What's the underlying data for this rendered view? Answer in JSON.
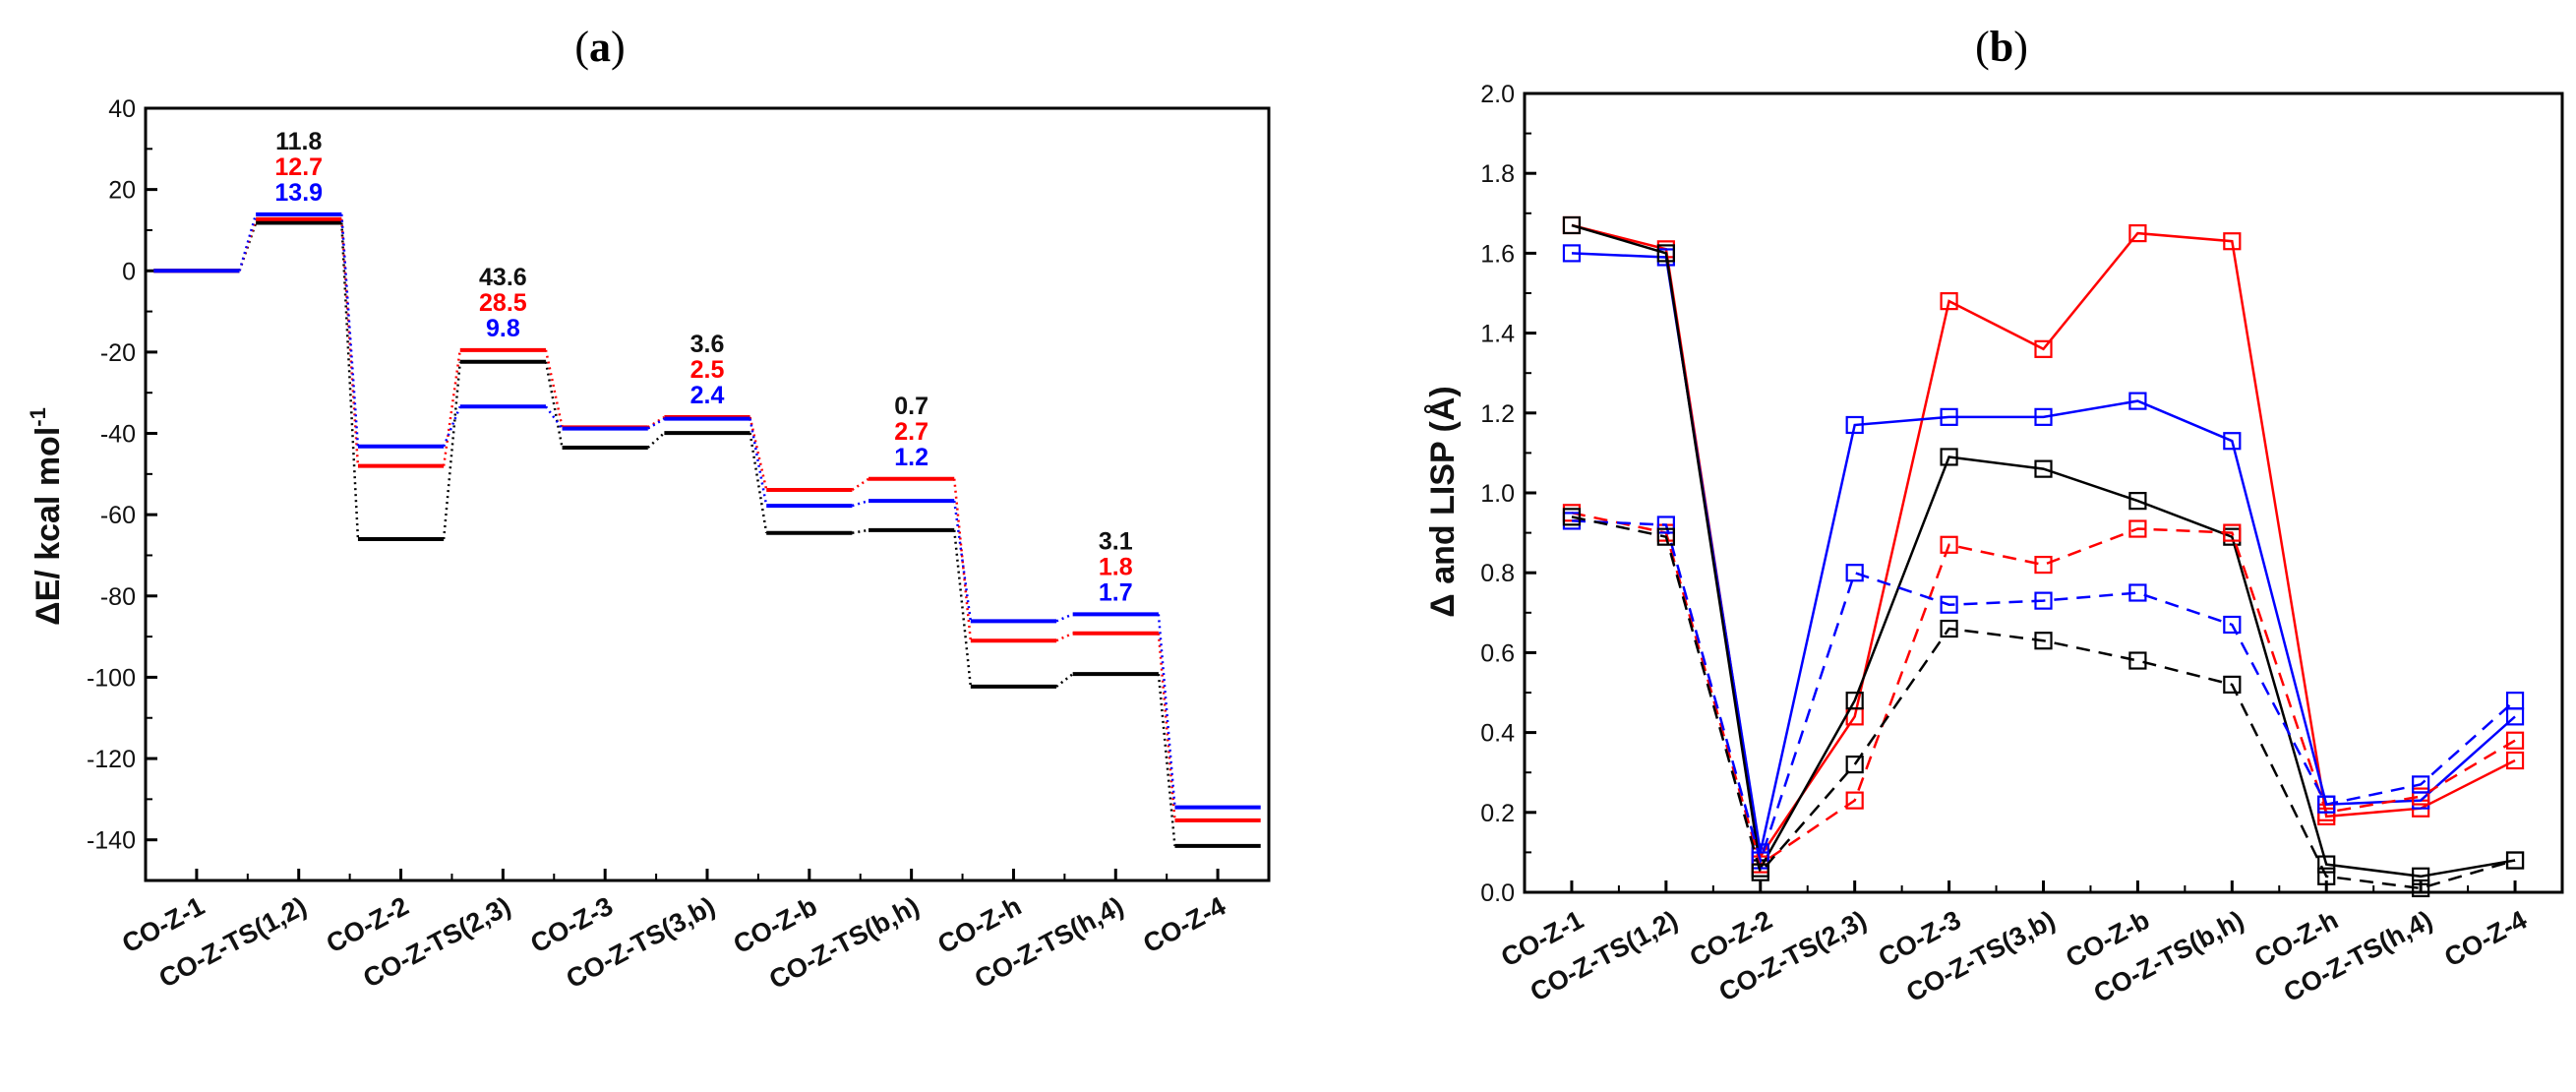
{
  "chart_data": [
    {
      "type": "energy-profile",
      "title_open": "(",
      "title_letter": "a",
      "title_close": ")",
      "ylabel": "ΔE/ kcal mol",
      "ylabel_sup": "-1",
      "ylim": [
        -150,
        40
      ],
      "yticks": [
        40,
        20,
        0,
        -20,
        -40,
        -60,
        -80,
        -100,
        -120,
        -140
      ],
      "ytick_labels": [
        "40",
        "20",
        "0",
        "-20",
        "-40",
        "-60",
        "-80",
        "-100",
        "-120",
        "-140"
      ],
      "categories": [
        "CO-Z-1",
        "CO-Z-TS(1,2)",
        "CO-Z-2",
        "CO-Z-TS(2,3)",
        "CO-Z-3",
        "CO-Z-TS(3,b)",
        "CO-Z-b",
        "CO-Z-TS(b,h)",
        "CO-Z-h",
        "CO-Z-TS(h,4)",
        "CO-Z-4"
      ],
      "series": [
        {
          "name": "black",
          "color": "#000000",
          "values": [
            0,
            11.8,
            -66,
            -22.4,
            -43.5,
            -39.9,
            -64.5,
            -63.8,
            -102.3,
            -99.2,
            -141.5
          ]
        },
        {
          "name": "red",
          "color": "#ff0000",
          "values": [
            0,
            12.7,
            -48,
            -19.5,
            -38.5,
            -36.0,
            -53.9,
            -51.2,
            -91.0,
            -89.2,
            -135.2
          ]
        },
        {
          "name": "blue",
          "color": "#0000ff",
          "values": [
            0,
            13.9,
            -43.2,
            -33.4,
            -38.8,
            -36.4,
            -57.8,
            -56.6,
            -86.2,
            -84.5,
            -132.0
          ]
        }
      ],
      "barriers": [
        {
          "category_index": 1,
          "labels": [
            "11.8",
            "12.7",
            "13.9"
          ]
        },
        {
          "category_index": 3,
          "labels": [
            "43.6",
            "28.5",
            "9.8"
          ]
        },
        {
          "category_index": 5,
          "labels": [
            "3.6",
            "2.5",
            "2.4"
          ]
        },
        {
          "category_index": 7,
          "labels": [
            "0.7",
            "2.7",
            "1.2"
          ]
        },
        {
          "category_index": 9,
          "labels": [
            "3.1",
            "1.8",
            "1.7"
          ]
        }
      ],
      "barrier_colors": [
        "#111111",
        "#ff0000",
        "#0000ff"
      ]
    },
    {
      "type": "line",
      "title_open": "(",
      "title_letter": "b",
      "title_close": ")",
      "ylabel": "Δ and LISP (Å)",
      "ylim": [
        0,
        2.0
      ],
      "yticks": [
        0.0,
        0.2,
        0.4,
        0.6,
        0.8,
        1.0,
        1.2,
        1.4,
        1.6,
        1.8,
        2.0
      ],
      "ytick_labels": [
        "0.0",
        "0.2",
        "0.4",
        "0.6",
        "0.8",
        "1.0",
        "1.2",
        "1.4",
        "1.6",
        "1.8",
        "2.0"
      ],
      "categories": [
        "CO-Z-1",
        "CO-Z-TS(1,2)",
        "CO-Z-2",
        "CO-Z-TS(2,3)",
        "CO-Z-3",
        "CO-Z-TS(3,b)",
        "CO-Z-b",
        "CO-Z-TS(b,h)",
        "CO-Z-h",
        "CO-Z-TS(h,4)",
        "CO-Z-4"
      ],
      "series": [
        {
          "name": "red solid",
          "color": "#ff0000",
          "dash": false,
          "values": [
            1.67,
            1.61,
            0.09,
            0.44,
            1.48,
            1.36,
            1.65,
            1.63,
            0.19,
            0.21,
            0.33
          ]
        },
        {
          "name": "blue solid",
          "color": "#0000ff",
          "dash": false,
          "values": [
            1.6,
            1.59,
            0.1,
            1.17,
            1.19,
            1.19,
            1.23,
            1.13,
            0.22,
            0.23,
            0.44
          ]
        },
        {
          "name": "black solid",
          "color": "#000000",
          "dash": false,
          "values": [
            1.67,
            1.6,
            0.06,
            0.48,
            1.09,
            1.06,
            0.98,
            0.89,
            0.07,
            0.04,
            0.08
          ]
        },
        {
          "name": "red dashed",
          "color": "#ff0000",
          "dash": true,
          "values": [
            0.95,
            0.9,
            0.07,
            0.23,
            0.87,
            0.82,
            0.91,
            0.9,
            0.2,
            0.24,
            0.38
          ]
        },
        {
          "name": "blue dashed",
          "color": "#0000ff",
          "dash": true,
          "values": [
            0.93,
            0.92,
            0.08,
            0.8,
            0.72,
            0.73,
            0.75,
            0.67,
            0.22,
            0.27,
            0.48
          ]
        },
        {
          "name": "black dashed",
          "color": "#000000",
          "dash": true,
          "values": [
            0.94,
            0.89,
            0.05,
            0.32,
            0.66,
            0.63,
            0.58,
            0.52,
            0.04,
            0.01,
            0.08
          ]
        }
      ]
    }
  ]
}
